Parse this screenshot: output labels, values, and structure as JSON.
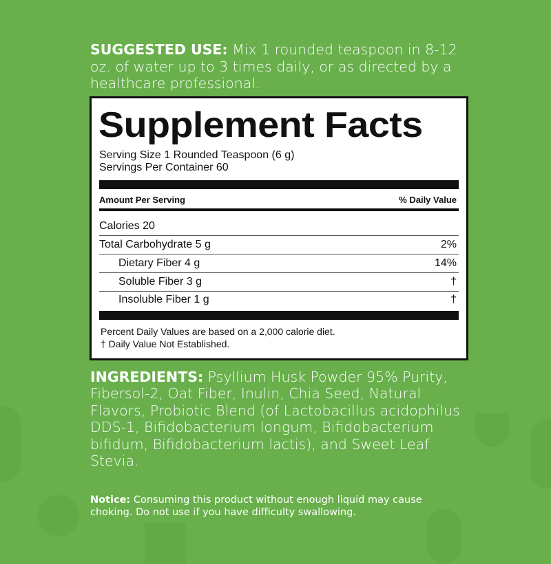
{
  "background_color": "#69b04c",
  "suggested_use": {
    "label": "SUGGESTED USE:",
    "text": " Mix 1 rounded teaspoon in 8-12 oz. of water up to 3 times daily, or as directed by a healthcare professional."
  },
  "facts": {
    "title": "Supplement Facts",
    "serving_size": "Serving Size 1 Rounded Teaspoon (6 g)",
    "servings_per_container": "Servings Per Container 60",
    "amount_header": "Amount Per Serving",
    "dv_header": "% Daily Value",
    "rows": [
      {
        "name": "Calories 20",
        "dv": ""
      },
      {
        "name": "Total Carbohydrate 5 g",
        "dv": "2%"
      },
      {
        "name": "Dietary Fiber 4 g",
        "dv": "14%"
      },
      {
        "name": "Soluble Fiber 3 g",
        "dv": "†"
      },
      {
        "name": "Insoluble Fiber 1 g",
        "dv": "†"
      }
    ],
    "footnote_1": "Percent Daily Values are based on a 2,000 calorie diet.",
    "footnote_2": "† Daily Value Not Established."
  },
  "ingredients": {
    "label": "INGREDIENTS:",
    "text": " Psyllium Husk Powder 95% Purity, Fibersol-2, Oat Fiber, Inulin, Chia Seed, Natural Flavors, Probiotic Blend (of Lactobacillus acidophilus DDS-1, Bifidobacterium longum, Bifidobacterium bifidum, Bifidobacterium lactis), and Sweet Leaf Stevia."
  },
  "notice": {
    "label": "Notice:",
    "text": " Consuming this product without enough liquid may cause choking. Do not use if you have difficulty swallowing."
  }
}
